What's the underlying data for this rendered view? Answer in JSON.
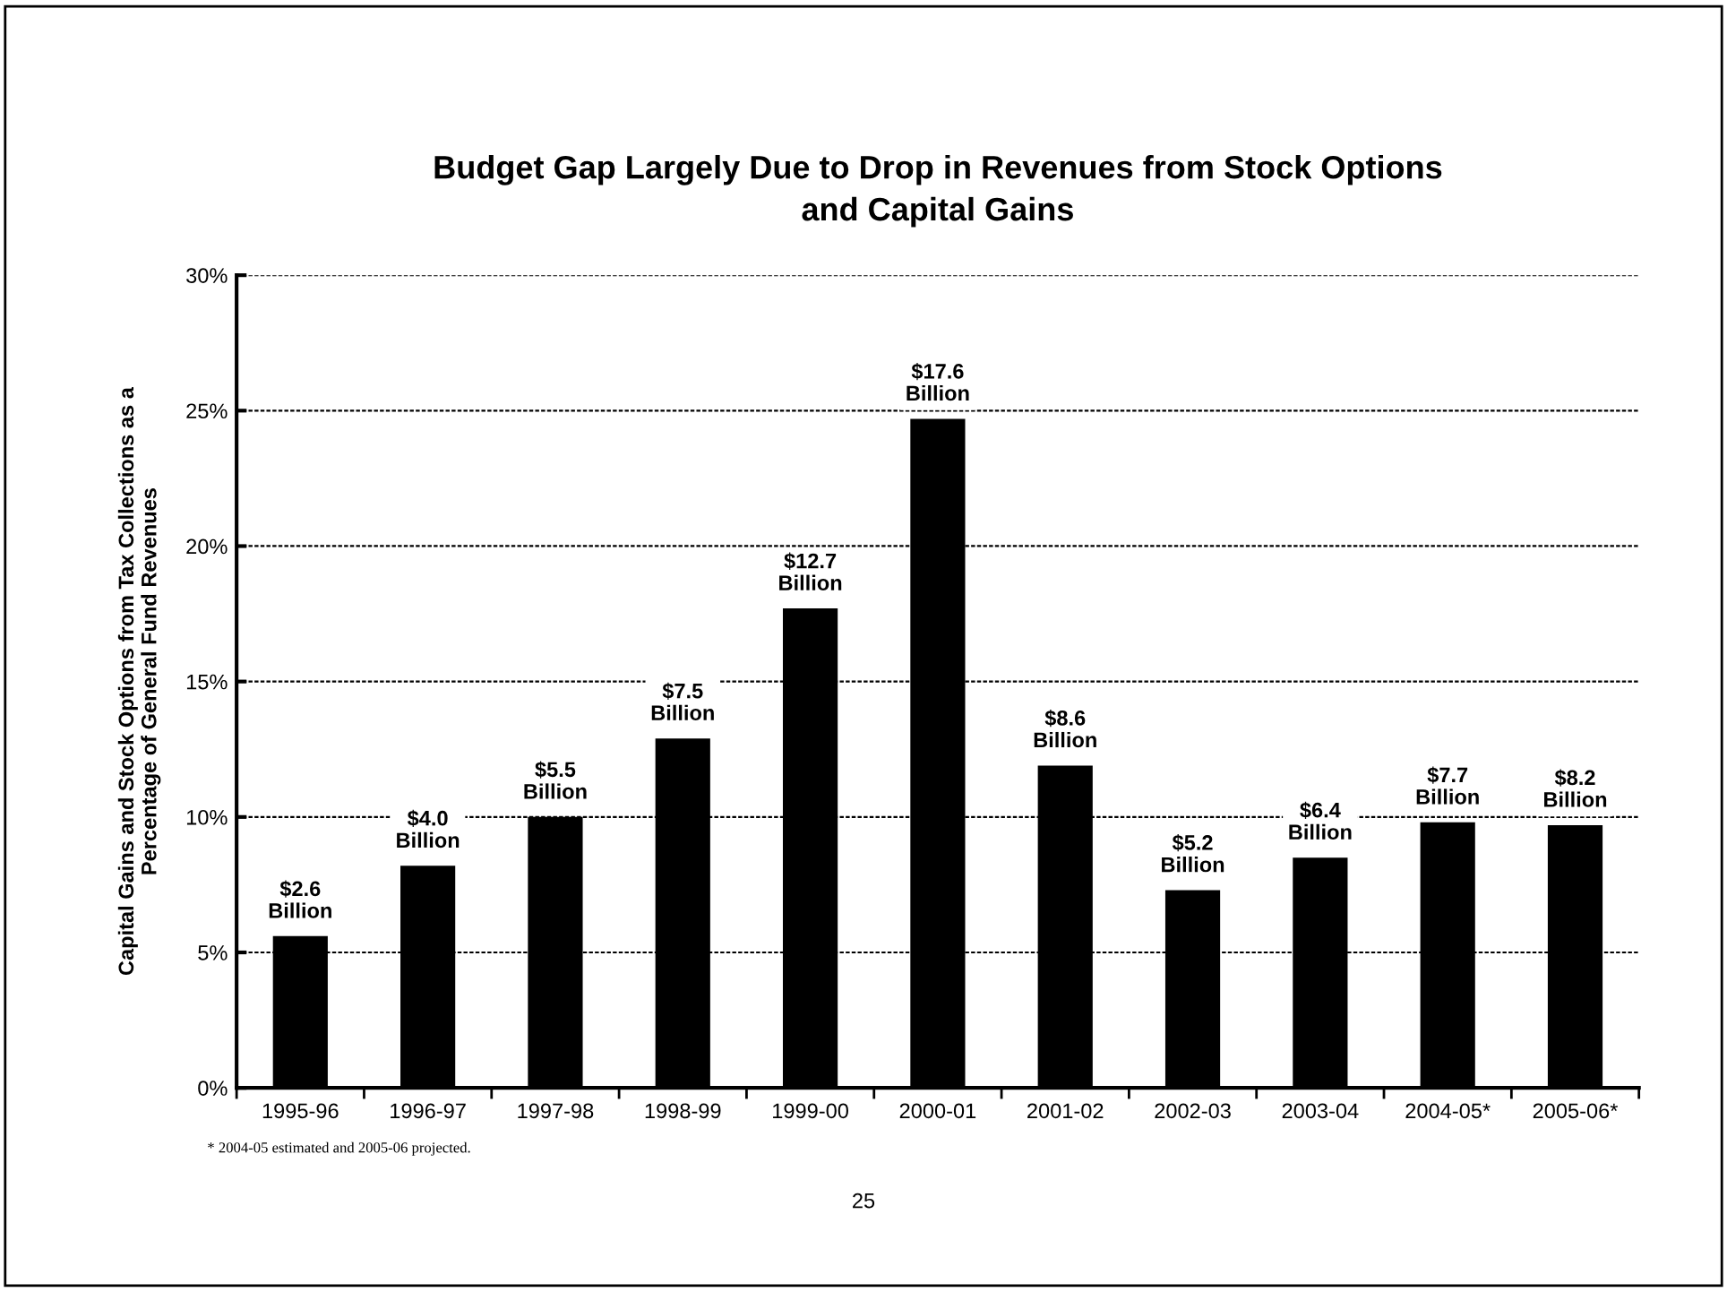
{
  "chart_data": {
    "type": "bar",
    "title": "Budget Gap Largely Due to Drop in Revenues from Stock Options\nand Capital Gains",
    "ylabel": "Capital Gains and Stock Options from Tax Collections as a\nPercentage of General Fund Revenues",
    "categories": [
      "1995-96",
      "1996-97",
      "1997-98",
      "1998-99",
      "1999-00",
      "2000-01",
      "2001-02",
      "2002-03",
      "2003-04",
      "2004-05*",
      "2005-06*"
    ],
    "values": [
      5.6,
      8.2,
      10.0,
      12.9,
      17.7,
      24.7,
      11.9,
      7.3,
      8.5,
      9.8,
      9.7
    ],
    "color": "#000000",
    "ylim": [
      0,
      30
    ],
    "yticks": [
      {
        "value": 0,
        "label": "0%"
      },
      {
        "value": 5,
        "label": "5%"
      },
      {
        "value": 10,
        "label": "10%"
      },
      {
        "value": 15,
        "label": "15%"
      },
      {
        "value": 20,
        "label": "20%"
      },
      {
        "value": 25,
        "label": "25%"
      },
      {
        "value": 30,
        "label": "30%"
      }
    ],
    "grid": "y",
    "legend": false,
    "annotations": [
      {
        "text": "$2.6\nBillion",
        "x": "1995-96",
        "y": 5.6
      },
      {
        "text": "$4.0\nBillion",
        "x": "1996-97",
        "y": 8.2
      },
      {
        "text": "$5.5\nBillion",
        "x": "1997-98",
        "y": 10.0
      },
      {
        "text": "$7.5\nBillion",
        "x": "1998-99",
        "y": 12.9
      },
      {
        "text": "$12.7\nBillion",
        "x": "1999-00",
        "y": 17.7
      },
      {
        "text": "$17.6\nBillion",
        "x": "2000-01",
        "y": 24.7
      },
      {
        "text": "$8.6\nBillion",
        "x": "2001-02",
        "y": 11.9
      },
      {
        "text": "$5.2\nBillion",
        "x": "2002-03",
        "y": 7.3
      },
      {
        "text": "$6.4\nBillion",
        "x": "2003-04",
        "y": 8.5
      },
      {
        "text": "$7.7\nBillion",
        "x": "2004-05*",
        "y": 9.8
      },
      {
        "text": "$8.2\nBillion",
        "x": "2005-06*",
        "y": 9.7
      },
      "* 2004-05 estimated and 2005-06 projected.",
      "25"
    ]
  }
}
